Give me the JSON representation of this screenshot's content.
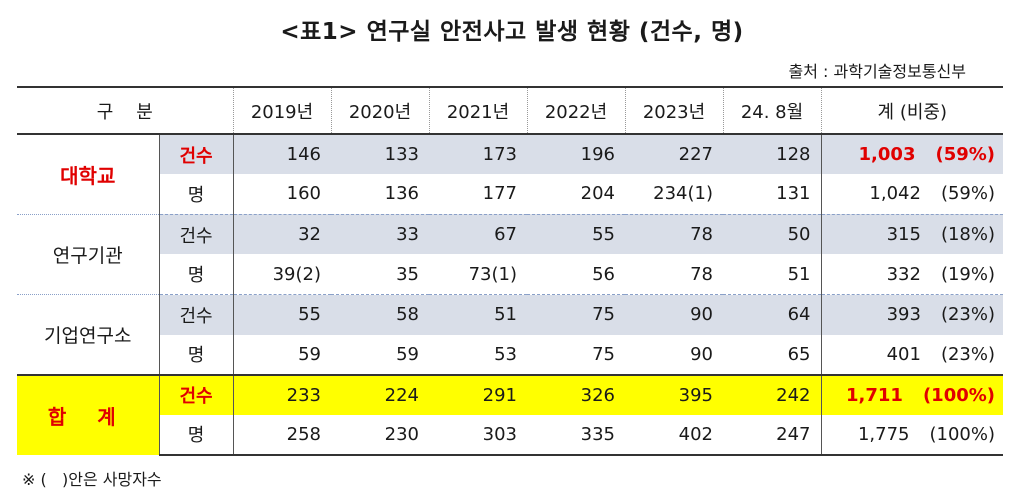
{
  "title": "<표1> 연구실 안전사고 발생 현황 (건수, 명)",
  "source": "출처 : 과학기술정보통신부",
  "header": {
    "category": "구    분",
    "years": [
      "2019년",
      "2020년",
      "2021년",
      "2022년",
      "2023년",
      "24. 8월"
    ],
    "total": "계 (비중)"
  },
  "groups": [
    {
      "name": "대학교",
      "rows": [
        {
          "label": "건수",
          "values": [
            "146",
            "133",
            "173",
            "196",
            "227",
            "128"
          ],
          "total": "1,003",
          "share": "(59%)"
        },
        {
          "label": "명",
          "values": [
            "160",
            "136",
            "177",
            "204",
            "234(1)",
            "131"
          ],
          "total": "1,042",
          "share": "(59%)"
        }
      ]
    },
    {
      "name": "연구기관",
      "rows": [
        {
          "label": "건수",
          "values": [
            "32",
            "33",
            "67",
            "55",
            "78",
            "50"
          ],
          "total": "315",
          "share": "(18%)"
        },
        {
          "label": "명",
          "values": [
            "39(2)",
            "35",
            "73(1)",
            "56",
            "78",
            "51"
          ],
          "total": "332",
          "share": "(19%)"
        }
      ]
    },
    {
      "name": "기업연구소",
      "rows": [
        {
          "label": "건수",
          "values": [
            "55",
            "58",
            "51",
            "75",
            "90",
            "64"
          ],
          "total": "393",
          "share": "(23%)"
        },
        {
          "label": "명",
          "values": [
            "59",
            "59",
            "53",
            "75",
            "90",
            "65"
          ],
          "total": "401",
          "share": "(23%)"
        }
      ]
    },
    {
      "name": "합 계",
      "rows": [
        {
          "label": "건수",
          "values": [
            "233",
            "224",
            "291",
            "326",
            "395",
            "242"
          ],
          "total": "1,711",
          "share": "(100%)"
        },
        {
          "label": "명",
          "values": [
            "258",
            "230",
            "303",
            "335",
            "402",
            "247"
          ],
          "total": "1,775",
          "share": "(100%)"
        }
      ]
    }
  ],
  "note": "※ (   )안은 사망자수",
  "colors": {
    "red": "#e00000",
    "highlight": "#ffff00",
    "shade": "#d9dee8"
  }
}
